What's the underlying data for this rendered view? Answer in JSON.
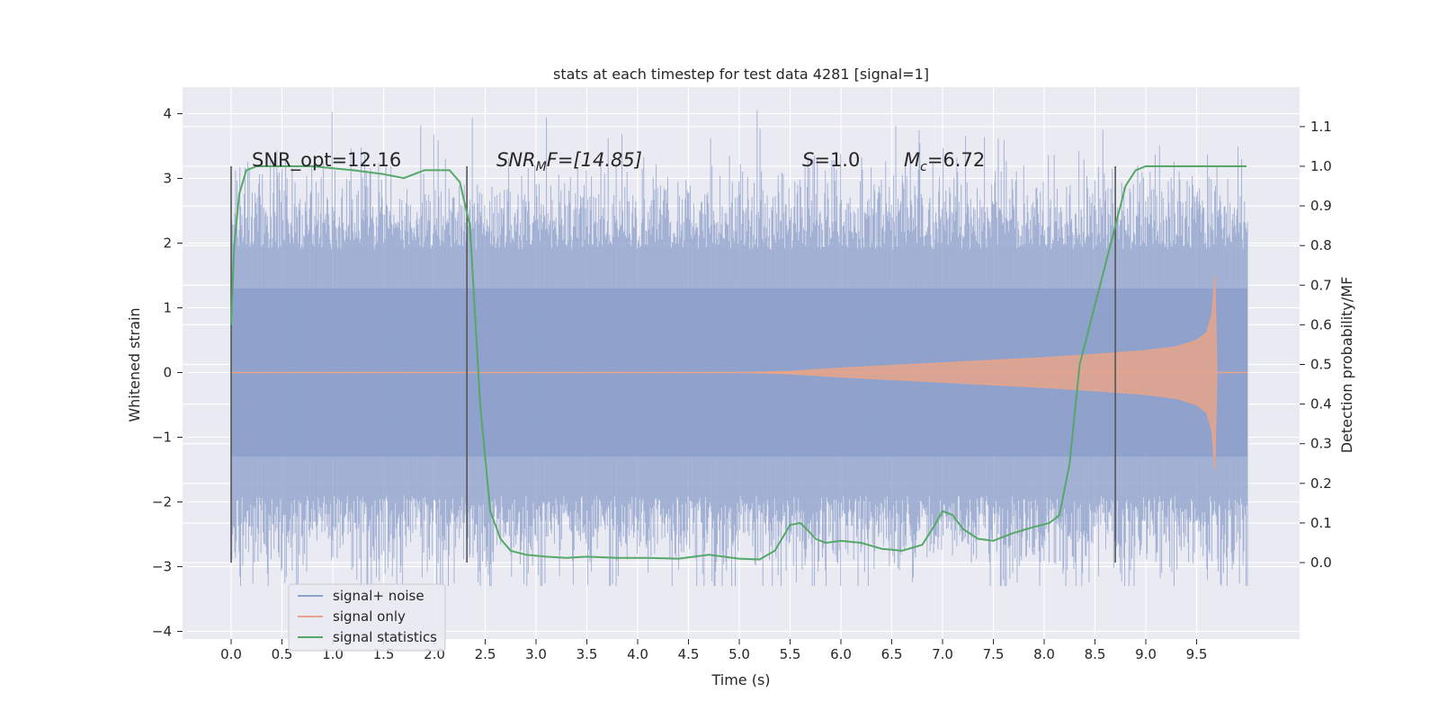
{
  "chart_data": {
    "type": "line",
    "title": "stats at each timestep for test data 4281 [signal=1]",
    "xlabel": "Time (s)",
    "ylabel": "Whitened strain",
    "ylabel_right": "Detection probability/MF",
    "xlim": [
      -0.5,
      10.5
    ],
    "ylim": [
      -4.1,
      4.4
    ],
    "ylim_right": [
      -0.18,
      1.18
    ],
    "xticks": [
      "0.0",
      "0.5",
      "1.0",
      "1.5",
      "2.0",
      "2.5",
      "3.0",
      "3.5",
      "4.0",
      "4.5",
      "5.0",
      "5.5",
      "6.0",
      "6.5",
      "7.0",
      "7.5",
      "8.0",
      "8.5",
      "9.0",
      "9.5"
    ],
    "yticks": [
      "4",
      "3",
      "2",
      "1",
      "0",
      "−1",
      "−2",
      "−3",
      "−4"
    ],
    "yticks_right": [
      "1.1",
      "1.0",
      "0.9",
      "0.8",
      "0.7",
      "0.6",
      "0.5",
      "0.4",
      "0.3",
      "0.2",
      "0.1",
      "0.0"
    ],
    "grid": true,
    "legend_position": "lower-left",
    "annotations": {
      "snr_opt": "SNR_opt=12.16",
      "snr_mf": "SNR",
      "snr_mf_sub": "M",
      "snr_mf_tail": "F=[14.85]",
      "s_var": "S",
      "s_val": "=1.0",
      "mc_var": "M",
      "mc_sub": "c",
      "mc_val": "=6.72"
    },
    "vlines_x": [
      0.0,
      2.32,
      8.7
    ],
    "series": [
      {
        "name": "signal+ noise",
        "color": "#8da0cb",
        "description_range": [
          -3.3,
          4.05
        ],
        "x_range": [
          0.0,
          10.0
        ]
      },
      {
        "name": "signal only",
        "color": "#e8a48a",
        "envelope_x": [
          0.0,
          5.0,
          5.5,
          6.0,
          6.5,
          7.0,
          7.5,
          8.0,
          8.5,
          9.0,
          9.3,
          9.5,
          9.6,
          9.65,
          9.68,
          9.7,
          10.0
        ],
        "envelope_y": [
          0.0,
          0.0,
          0.02,
          0.07,
          0.11,
          0.15,
          0.19,
          0.23,
          0.28,
          0.34,
          0.4,
          0.5,
          0.62,
          0.9,
          1.5,
          0.0,
          0.0
        ]
      },
      {
        "name": "signal statistics",
        "color": "#55a868",
        "axis": "right",
        "x": [
          0.0,
          0.03,
          0.08,
          0.15,
          0.25,
          0.4,
          0.8,
          1.2,
          1.5,
          1.7,
          1.9,
          2.05,
          2.15,
          2.25,
          2.35,
          2.45,
          2.55,
          2.65,
          2.75,
          2.9,
          3.1,
          3.3,
          3.5,
          3.8,
          4.1,
          4.4,
          4.7,
          5.0,
          5.2,
          5.35,
          5.5,
          5.6,
          5.68,
          5.75,
          5.85,
          6.0,
          6.2,
          6.4,
          6.6,
          6.8,
          6.9,
          7.0,
          7.1,
          7.2,
          7.35,
          7.5,
          7.7,
          7.9,
          8.05,
          8.15,
          8.25,
          8.35,
          8.5,
          8.65,
          8.8,
          8.9,
          9.0,
          9.15,
          9.4,
          9.7,
          9.99
        ],
        "y": [
          0.6,
          0.8,
          0.93,
          0.99,
          1.0,
          1.0,
          1.0,
          0.99,
          0.98,
          0.97,
          0.99,
          0.99,
          0.99,
          0.96,
          0.85,
          0.4,
          0.13,
          0.06,
          0.03,
          0.02,
          0.015,
          0.012,
          0.015,
          0.012,
          0.012,
          0.01,
          0.02,
          0.01,
          0.008,
          0.03,
          0.095,
          0.1,
          0.08,
          0.06,
          0.05,
          0.055,
          0.05,
          0.035,
          0.03,
          0.045,
          0.085,
          0.13,
          0.12,
          0.085,
          0.06,
          0.055,
          0.075,
          0.09,
          0.1,
          0.12,
          0.25,
          0.5,
          0.65,
          0.8,
          0.95,
          0.99,
          1.0,
          1.0,
          1.0,
          1.0,
          1.0
        ]
      }
    ]
  }
}
